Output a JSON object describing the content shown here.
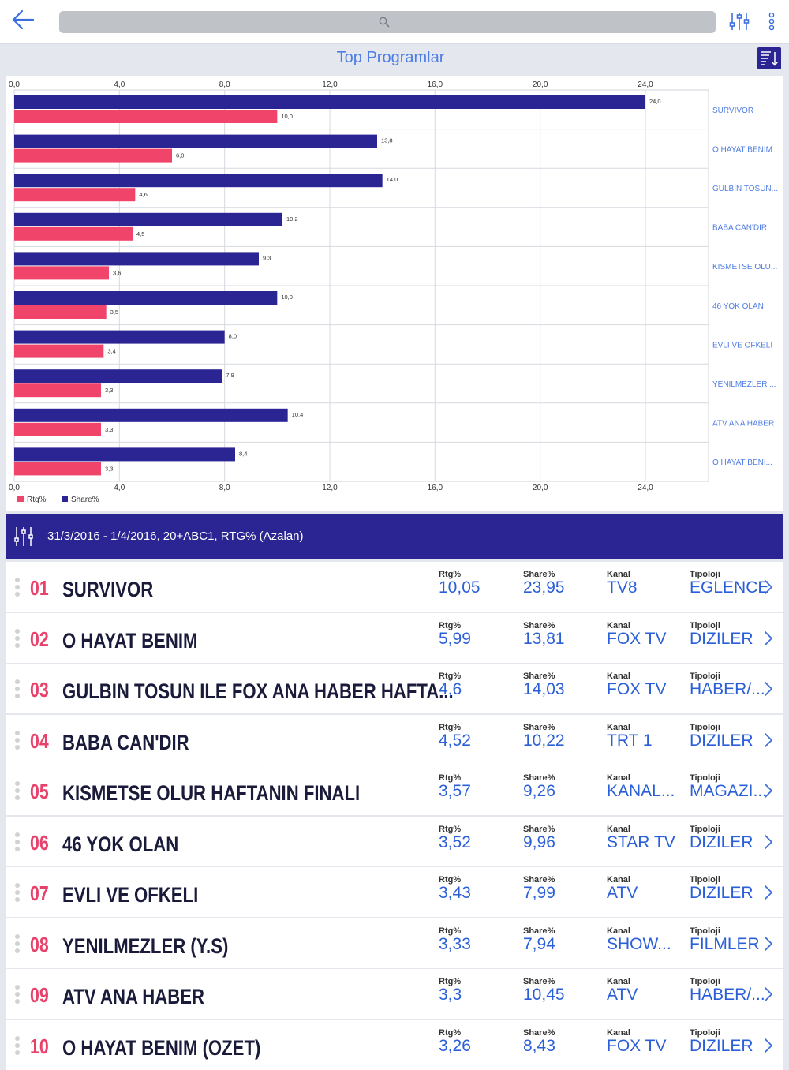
{
  "header": {
    "back_icon": "arrow-left-icon",
    "search": {
      "placeholder": "",
      "value": ""
    },
    "filter_icon": "sliders-icon",
    "more_icon": "vertical-ellipsis-icon"
  },
  "chart_title": "Top Programlar",
  "sort_icon": "sort-descending-icon",
  "chart_data": {
    "type": "bar",
    "orientation": "horizontal",
    "categories": [
      "SURVIVOR",
      "O HAYAT BENIM",
      "GULBIN TOSUN...",
      "BABA CAN'DIR",
      "KISMETSE OLU...",
      "46 YOK OLAN",
      "EVLI VE OFKELI",
      "YENILMEZLER ...",
      "ATV ANA HABER",
      "O HAYAT BENI..."
    ],
    "series": [
      {
        "name": "Share%",
        "color": "#2b2593",
        "values": [
          24.0,
          13.8,
          14.0,
          10.2,
          9.3,
          10.0,
          8.0,
          7.9,
          10.4,
          8.4
        ],
        "labels": [
          "24,0",
          "13,8",
          "14,0",
          "10,2",
          "9,3",
          "10,0",
          "8,0",
          "7,9",
          "10,4",
          "8,4"
        ]
      },
      {
        "name": "Rtg%",
        "color": "#f0446b",
        "values": [
          10.0,
          6.0,
          4.6,
          4.5,
          3.6,
          3.5,
          3.4,
          3.3,
          3.3,
          3.3
        ],
        "labels": [
          "10,0",
          "6,0",
          "4,6",
          "4,5",
          "3,6",
          "3,5",
          "3,4",
          "3,3",
          "3,3",
          "3,3"
        ]
      }
    ],
    "xlim": [
      0,
      26.4
    ],
    "ticks": [
      0,
      4,
      8,
      12,
      16,
      20,
      24
    ],
    "tick_labels": [
      "0,0",
      "4,0",
      "8,0",
      "12,0",
      "16,0",
      "20,0",
      "24,0"
    ],
    "legend": [
      {
        "name": "Rtg%",
        "color": "#f0446b"
      },
      {
        "name": "Share%",
        "color": "#2b2593"
      }
    ],
    "legend_position": "bottom-left",
    "grid": true,
    "category_label_color": "#4f7de6"
  },
  "filter_strip": {
    "icon": "sliders-icon",
    "text": "31/3/2016 - 1/4/2016, 20+ABC1, RTG% (Azalan)"
  },
  "columns": {
    "rtg": "Rtg%",
    "share": "Share%",
    "kanal": "Kanal",
    "tipoloji": "Tipoloji"
  },
  "rows": [
    {
      "rank": "01",
      "name": "SURVIVOR",
      "rtg": "10,05",
      "share": "23,95",
      "kanal": "TV8",
      "tipoloji": "EGLENCE"
    },
    {
      "rank": "02",
      "name": "O HAYAT BENIM",
      "rtg": "5,99",
      "share": "13,81",
      "kanal": "FOX TV",
      "tipoloji": "DIZILER"
    },
    {
      "rank": "03",
      "name": "GULBIN TOSUN ILE FOX ANA HABER HAFTA...",
      "rtg": "4,6",
      "share": "14,03",
      "kanal": "FOX TV",
      "tipoloji": "HABER/..."
    },
    {
      "rank": "04",
      "name": "BABA CAN'DIR",
      "rtg": "4,52",
      "share": "10,22",
      "kanal": "TRT 1",
      "tipoloji": "DIZILER"
    },
    {
      "rank": "05",
      "name": "KISMETSE OLUR HAFTANIN FINALI",
      "rtg": "3,57",
      "share": "9,26",
      "kanal": "KANAL...",
      "tipoloji": "MAGAZI..."
    },
    {
      "rank": "06",
      "name": "46 YOK OLAN",
      "rtg": "3,52",
      "share": "9,96",
      "kanal": "STAR TV",
      "tipoloji": "DIZILER"
    },
    {
      "rank": "07",
      "name": "EVLI VE OFKELI",
      "rtg": "3,43",
      "share": "7,99",
      "kanal": "ATV",
      "tipoloji": "DIZILER"
    },
    {
      "rank": "08",
      "name": "YENILMEZLER (Y.S)",
      "rtg": "3,33",
      "share": "7,94",
      "kanal": "SHOW...",
      "tipoloji": "FILMLER"
    },
    {
      "rank": "09",
      "name": "ATV ANA HABER",
      "rtg": "3,3",
      "share": "10,45",
      "kanal": "ATV",
      "tipoloji": "HABER/..."
    },
    {
      "rank": "10",
      "name": "O HAYAT BENIM (OZET)",
      "rtg": "3,26",
      "share": "8,43",
      "kanal": "FOX TV",
      "tipoloji": "DIZILER"
    }
  ],
  "row_chevron_icon": "chevron-right-icon",
  "drag_handle_icon": "drag-handle-icon"
}
